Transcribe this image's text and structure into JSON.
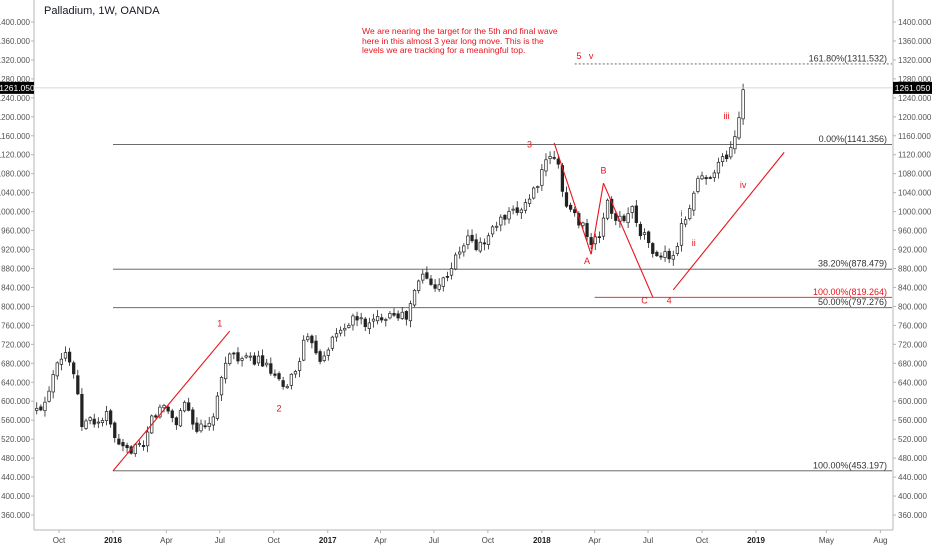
{
  "header": {
    "title": "Palladium, 1W, OANDA"
  },
  "annotation": {
    "note": "We are nearing the target for the 5th and final wave here in this almost 3 year long move. This is the levels we are tracking for a meaningful top."
  },
  "chart_data": {
    "type": "candlestick",
    "ylim": [
      340,
      1400
    ],
    "y_ticks": [
      "1400.000",
      "1360.000",
      "1320.000",
      "1280.000",
      "1240.000",
      "1200.000",
      "1160.000",
      "1120.000",
      "1080.000",
      "1040.000",
      "1000.000",
      "960.000",
      "920.000",
      "880.000",
      "840.000",
      "800.000",
      "760.000",
      "720.000",
      "680.000",
      "640.000",
      "600.000",
      "560.000",
      "520.000",
      "480.000",
      "440.000",
      "400.000",
      "360.000"
    ],
    "x_ticks": [
      {
        "label": "Oct",
        "date": "2015-10-01",
        "bold": false
      },
      {
        "label": "2016",
        "date": "2016-01-01",
        "bold": true
      },
      {
        "label": "Apr",
        "date": "2016-04-01",
        "bold": false
      },
      {
        "label": "Jul",
        "date": "2016-07-01",
        "bold": false
      },
      {
        "label": "Oct",
        "date": "2016-10-01",
        "bold": false
      },
      {
        "label": "2017",
        "date": "2017-01-01",
        "bold": true
      },
      {
        "label": "Apr",
        "date": "2017-04-01",
        "bold": false
      },
      {
        "label": "Jul",
        "date": "2017-07-01",
        "bold": false
      },
      {
        "label": "Oct",
        "date": "2017-10-01",
        "bold": false
      },
      {
        "label": "2018",
        "date": "2018-01-01",
        "bold": true
      },
      {
        "label": "Apr",
        "date": "2018-04-01",
        "bold": false
      },
      {
        "label": "Jul",
        "date": "2018-07-01",
        "bold": false
      },
      {
        "label": "Oct",
        "date": "2018-10-01",
        "bold": false
      },
      {
        "label": "2019",
        "date": "2019-01-01",
        "bold": true
      },
      {
        "label": "May",
        "date": "2019-05-01",
        "bold": false
      },
      {
        "label": "Aug",
        "date": "2019-08-01",
        "bold": false
      }
    ],
    "current_price": {
      "value": 1261.05,
      "label": "1261.050"
    },
    "price_path": [
      {
        "date": "2015-08-24",
        "price": 580
      },
      {
        "date": "2015-09-07",
        "price": 600
      },
      {
        "date": "2015-09-28",
        "price": 690
      },
      {
        "date": "2015-10-12",
        "price": 705
      },
      {
        "date": "2015-10-26",
        "price": 660
      },
      {
        "date": "2015-11-09",
        "price": 550
      },
      {
        "date": "2015-11-23",
        "price": 560
      },
      {
        "date": "2015-12-07",
        "price": 555
      },
      {
        "date": "2015-12-21",
        "price": 570
      },
      {
        "date": "2016-01-11",
        "price": 500
      },
      {
        "date": "2016-01-25",
        "price": 495
      },
      {
        "date": "2016-02-08",
        "price": 505
      },
      {
        "date": "2016-02-22",
        "price": 495
      },
      {
        "date": "2016-03-07",
        "price": 565
      },
      {
        "date": "2016-03-28",
        "price": 590
      },
      {
        "date": "2016-04-18",
        "price": 555
      },
      {
        "date": "2016-05-02",
        "price": 600
      },
      {
        "date": "2016-05-23",
        "price": 540
      },
      {
        "date": "2016-06-13",
        "price": 545
      },
      {
        "date": "2016-06-27",
        "price": 600
      },
      {
        "date": "2016-07-11",
        "price": 690
      },
      {
        "date": "2016-07-25",
        "price": 700
      },
      {
        "date": "2016-08-15",
        "price": 685
      },
      {
        "date": "2016-09-05",
        "price": 690
      },
      {
        "date": "2016-09-26",
        "price": 660
      },
      {
        "date": "2016-10-17",
        "price": 625
      },
      {
        "date": "2016-11-07",
        "price": 665
      },
      {
        "date": "2016-11-21",
        "price": 720
      },
      {
        "date": "2016-12-05",
        "price": 730
      },
      {
        "date": "2016-12-19",
        "price": 690
      },
      {
        "date": "2017-01-09",
        "price": 730
      },
      {
        "date": "2017-01-30",
        "price": 760
      },
      {
        "date": "2017-02-20",
        "price": 775
      },
      {
        "date": "2017-03-13",
        "price": 760
      },
      {
        "date": "2017-04-03",
        "price": 780
      },
      {
        "date": "2017-04-24",
        "price": 790
      },
      {
        "date": "2017-05-15",
        "price": 775
      },
      {
        "date": "2017-05-29",
        "price": 830
      },
      {
        "date": "2017-06-12",
        "price": 870
      },
      {
        "date": "2017-06-26",
        "price": 845
      },
      {
        "date": "2017-07-17",
        "price": 855
      },
      {
        "date": "2017-08-07",
        "price": 900
      },
      {
        "date": "2017-08-28",
        "price": 945
      },
      {
        "date": "2017-09-11",
        "price": 925
      },
      {
        "date": "2017-09-25",
        "price": 935
      },
      {
        "date": "2017-10-16",
        "price": 975
      },
      {
        "date": "2017-11-06",
        "price": 990
      },
      {
        "date": "2017-11-20",
        "price": 1000
      },
      {
        "date": "2017-12-11",
        "price": 1030
      },
      {
        "date": "2018-01-01",
        "price": 1080
      },
      {
        "date": "2018-01-15",
        "price": 1120
      },
      {
        "date": "2018-01-29",
        "price": 1095
      },
      {
        "date": "2018-02-12",
        "price": 1010
      },
      {
        "date": "2018-02-26",
        "price": 990
      },
      {
        "date": "2018-03-12",
        "price": 975
      },
      {
        "date": "2018-03-26",
        "price": 925
      },
      {
        "date": "2018-04-09",
        "price": 950
      },
      {
        "date": "2018-04-23",
        "price": 1025
      },
      {
        "date": "2018-05-07",
        "price": 975
      },
      {
        "date": "2018-05-21",
        "price": 990
      },
      {
        "date": "2018-06-04",
        "price": 1005
      },
      {
        "date": "2018-06-18",
        "price": 960
      },
      {
        "date": "2018-07-02",
        "price": 935
      },
      {
        "date": "2018-07-16",
        "price": 900
      },
      {
        "date": "2018-07-30",
        "price": 910
      },
      {
        "date": "2018-08-13",
        "price": 900
      },
      {
        "date": "2018-08-27",
        "price": 965
      },
      {
        "date": "2018-09-10",
        "price": 1010
      },
      {
        "date": "2018-09-24",
        "price": 1070
      },
      {
        "date": "2018-10-08",
        "price": 1070
      },
      {
        "date": "2018-10-22",
        "price": 1090
      },
      {
        "date": "2018-11-05",
        "price": 1110
      },
      {
        "date": "2018-11-19",
        "price": 1130
      },
      {
        "date": "2018-12-03",
        "price": 1200
      },
      {
        "date": "2018-12-10",
        "price": 1261
      }
    ],
    "fib_levels": [
      {
        "label": "161.80%(1311.532)",
        "value": 1311.532,
        "start": "2018-02-26",
        "end": "2019-08-31",
        "style": "dashed",
        "color": "#555555"
      },
      {
        "label": "0.00%(1141.356)",
        "value": 1141.356,
        "start": "2016-01-01",
        "end": "2019-08-31",
        "style": "solid",
        "color": "#555555"
      },
      {
        "label": "38.20%(878.479)",
        "value": 878.479,
        "start": "2016-01-01",
        "end": "2019-08-31",
        "style": "solid",
        "color": "#555555"
      },
      {
        "label": "100.00%(819.264)",
        "value": 819.264,
        "start": "2018-04-01",
        "end": "2019-08-31",
        "style": "solid",
        "color": "#e8131b"
      },
      {
        "label": "50.00%(797.276)",
        "value": 797.276,
        "start": "2016-01-01",
        "end": "2019-08-31",
        "style": "solid",
        "color": "#555555"
      },
      {
        "label": "100.00%(453.197)",
        "value": 453.197,
        "start": "2016-01-01",
        "end": "2019-08-31",
        "style": "solid",
        "color": "#555555"
      }
    ],
    "trend_lines": [
      {
        "from": {
          "date": "2016-01-01",
          "price": 453
        },
        "to": {
          "date": "2016-07-18",
          "price": 748
        }
      },
      {
        "from": {
          "date": "2018-01-22",
          "price": 1145
        },
        "to": {
          "date": "2018-03-26",
          "price": 910
        }
      },
      {
        "from": {
          "date": "2018-03-26",
          "price": 910
        },
        "to": {
          "date": "2018-04-16",
          "price": 1060
        }
      },
      {
        "from": {
          "date": "2018-04-16",
          "price": 1060
        },
        "to": {
          "date": "2018-07-09",
          "price": 820
        }
      },
      {
        "from": {
          "date": "2018-08-13",
          "price": 835
        },
        "to": {
          "date": "2019-02-18",
          "price": 1125
        }
      }
    ],
    "wave_labels": [
      {
        "text": "1",
        "date": "2016-07-01",
        "price": 758
      },
      {
        "text": "2",
        "date": "2016-10-10",
        "price": 578
      },
      {
        "text": "3",
        "date": "2017-12-11",
        "price": 1135
      },
      {
        "text": "A",
        "date": "2018-03-19",
        "price": 890
      },
      {
        "text": "B",
        "date": "2018-04-16",
        "price": 1080
      },
      {
        "text": "C",
        "date": "2018-06-25",
        "price": 806
      },
      {
        "text": "4",
        "date": "2018-08-06",
        "price": 806
      },
      {
        "text": "i",
        "date": "2018-08-27",
        "price": 990
      },
      {
        "text": "ii",
        "date": "2018-09-17",
        "price": 927
      },
      {
        "text": "iii",
        "date": "2018-11-12",
        "price": 1195
      },
      {
        "text": "iv",
        "date": "2018-12-10",
        "price": 1050
      },
      {
        "text": "5",
        "date": "2018-03-05",
        "price": 1322
      },
      {
        "text": "v",
        "date": "2018-03-26",
        "price": 1322
      }
    ]
  },
  "colors": {
    "accent_red": "#e8131b",
    "candle_up": "#ffffff",
    "candle_down": "#222222",
    "grid_axis": "#d0d3db",
    "price_tag": "#000000"
  }
}
